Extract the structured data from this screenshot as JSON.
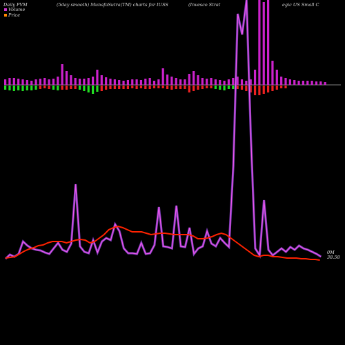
{
  "header": {
    "left": "Daily PVM",
    "middle": "(5day smooth) MunafaSutra(TM) charts for IUSS",
    "right_a": "(Invesco  Strat",
    "right_b": "egic US Small C"
  },
  "legend": {
    "volume": "Volume",
    "price": "Price",
    "volume_color": "#cc33cc",
    "price_color": "#ff8800"
  },
  "labels": {
    "volume_last": "0M",
    "price_last": "38.58"
  },
  "chart_data": {
    "type": "line",
    "bars": [
      {
        "up": 8,
        "down": 6,
        "color": "green"
      },
      {
        "up": 10,
        "down": 7,
        "color": "green"
      },
      {
        "up": 10,
        "down": 8,
        "color": "green"
      },
      {
        "up": 9,
        "down": 7,
        "color": "green"
      },
      {
        "up": 8,
        "down": 8,
        "color": "green"
      },
      {
        "up": 7,
        "down": 7,
        "color": "green"
      },
      {
        "up": 6,
        "down": 7,
        "color": "green"
      },
      {
        "up": 8,
        "down": 6,
        "color": "green"
      },
      {
        "up": 9,
        "down": 5,
        "color": "red"
      },
      {
        "up": 10,
        "down": 4,
        "color": "red"
      },
      {
        "up": 8,
        "down": 5,
        "color": "red"
      },
      {
        "up": 9,
        "down": 6,
        "color": "green"
      },
      {
        "up": 12,
        "down": 7,
        "color": "green"
      },
      {
        "up": 30,
        "down": 6,
        "color": "red"
      },
      {
        "up": 20,
        "down": 6,
        "color": "red"
      },
      {
        "up": 14,
        "down": 5,
        "color": "red"
      },
      {
        "up": 10,
        "down": 5,
        "color": "red"
      },
      {
        "up": 9,
        "down": 6,
        "color": "green"
      },
      {
        "up": 9,
        "down": 8,
        "color": "green"
      },
      {
        "up": 10,
        "down": 10,
        "color": "green"
      },
      {
        "up": 12,
        "down": 12,
        "color": "green"
      },
      {
        "up": 22,
        "down": 9,
        "color": "green"
      },
      {
        "up": 14,
        "down": 8,
        "color": "red"
      },
      {
        "up": 11,
        "down": 6,
        "color": "red"
      },
      {
        "up": 9,
        "down": 5,
        "color": "red"
      },
      {
        "up": 8,
        "down": 5,
        "color": "red"
      },
      {
        "up": 7,
        "down": 5,
        "color": "red"
      },
      {
        "up": 6,
        "down": 5,
        "color": "red"
      },
      {
        "up": 7,
        "down": 5,
        "color": "red"
      },
      {
        "up": 8,
        "down": 4,
        "color": "red"
      },
      {
        "up": 8,
        "down": 5,
        "color": "red"
      },
      {
        "up": 7,
        "down": 4,
        "color": "red"
      },
      {
        "up": 9,
        "down": 5,
        "color": "red"
      },
      {
        "up": 10,
        "down": 5,
        "color": "red"
      },
      {
        "up": 6,
        "down": 4,
        "color": "red"
      },
      {
        "up": 8,
        "down": 4,
        "color": "red"
      },
      {
        "up": 24,
        "down": 4,
        "color": "red"
      },
      {
        "up": 15,
        "down": 5,
        "color": "red"
      },
      {
        "up": 12,
        "down": 6,
        "color": "red"
      },
      {
        "up": 10,
        "down": 5,
        "color": "red"
      },
      {
        "up": 8,
        "down": 5,
        "color": "red"
      },
      {
        "up": 8,
        "down": 5,
        "color": "red"
      },
      {
        "up": 16,
        "down": 10,
        "color": "red"
      },
      {
        "up": 20,
        "down": 8,
        "color": "red"
      },
      {
        "up": 14,
        "down": 6,
        "color": "red"
      },
      {
        "up": 10,
        "down": 5,
        "color": "red"
      },
      {
        "up": 9,
        "down": 4,
        "color": "red"
      },
      {
        "up": 10,
        "down": 4,
        "color": "red"
      },
      {
        "up": 8,
        "down": 5,
        "color": "green"
      },
      {
        "up": 7,
        "down": 6,
        "color": "green"
      },
      {
        "up": 6,
        "down": 7,
        "color": "green"
      },
      {
        "up": 8,
        "down": 5,
        "color": "green"
      },
      {
        "up": 10,
        "down": 5,
        "color": "green"
      },
      {
        "up": 12,
        "down": 5,
        "color": "red"
      },
      {
        "up": 8,
        "down": 6,
        "color": "red"
      },
      {
        "up": 6,
        "down": 8,
        "color": "red"
      },
      {
        "up": 8,
        "down": 10,
        "color": "red"
      },
      {
        "up": 22,
        "down": 14,
        "color": "red"
      },
      {
        "up": 180,
        "down": 14,
        "color": "red"
      },
      {
        "up": 120,
        "down": 12,
        "color": "red"
      },
      {
        "up": 180,
        "down": 10,
        "color": "red"
      },
      {
        "up": 35,
        "down": 8,
        "color": "red"
      },
      {
        "up": 22,
        "down": 6,
        "color": "red"
      },
      {
        "up": 12,
        "down": 4,
        "color": "red"
      },
      {
        "up": 10,
        "down": 4,
        "color": "red"
      },
      {
        "up": 8,
        "down": 0,
        "color": "red"
      },
      {
        "up": 7,
        "down": 0,
        "color": "red"
      },
      {
        "up": 6,
        "down": 0,
        "color": "red"
      },
      {
        "up": 6,
        "down": 0,
        "color": "red"
      },
      {
        "up": 6,
        "down": 0,
        "color": "red"
      },
      {
        "up": 6,
        "down": 0,
        "color": "red"
      },
      {
        "up": 5,
        "down": 0,
        "color": "red"
      },
      {
        "up": 5,
        "down": 0,
        "color": "red"
      },
      {
        "up": 4,
        "down": 0,
        "color": "red"
      }
    ],
    "volume_line": [
      375,
      369,
      372,
      368,
      350,
      356,
      360,
      362,
      363,
      366,
      368,
      360,
      352,
      362,
      365,
      353,
      267,
      357,
      365,
      367,
      348,
      366,
      350,
      345,
      348,
      325,
      335,
      360,
      367,
      367,
      368,
      352,
      368,
      367,
      355,
      300,
      357,
      358,
      360,
      298,
      357,
      358,
      330,
      368,
      360,
      357,
      335,
      353,
      357,
      345,
      352,
      358,
      240,
      20,
      50,
      0,
      200,
      360,
      370,
      290,
      362,
      370,
      365,
      360,
      365,
      358,
      362,
      356,
      360,
      362,
      365,
      368,
      372
    ],
    "price_line": [
      374,
      373,
      372,
      368,
      364,
      361,
      359,
      356,
      355,
      352,
      350,
      350,
      350,
      352,
      350,
      348,
      347,
      348,
      352,
      350,
      345,
      340,
      333,
      330,
      328,
      330,
      333,
      336,
      336,
      336,
      338,
      340,
      339,
      338,
      338,
      339,
      340,
      340,
      340,
      340,
      342,
      346,
      346,
      345,
      343,
      340,
      338,
      340,
      345,
      350,
      355,
      360,
      365,
      370,
      372,
      370,
      370,
      372,
      372,
      373,
      374,
      374,
      374,
      375,
      375,
      376,
      376,
      377
    ]
  }
}
